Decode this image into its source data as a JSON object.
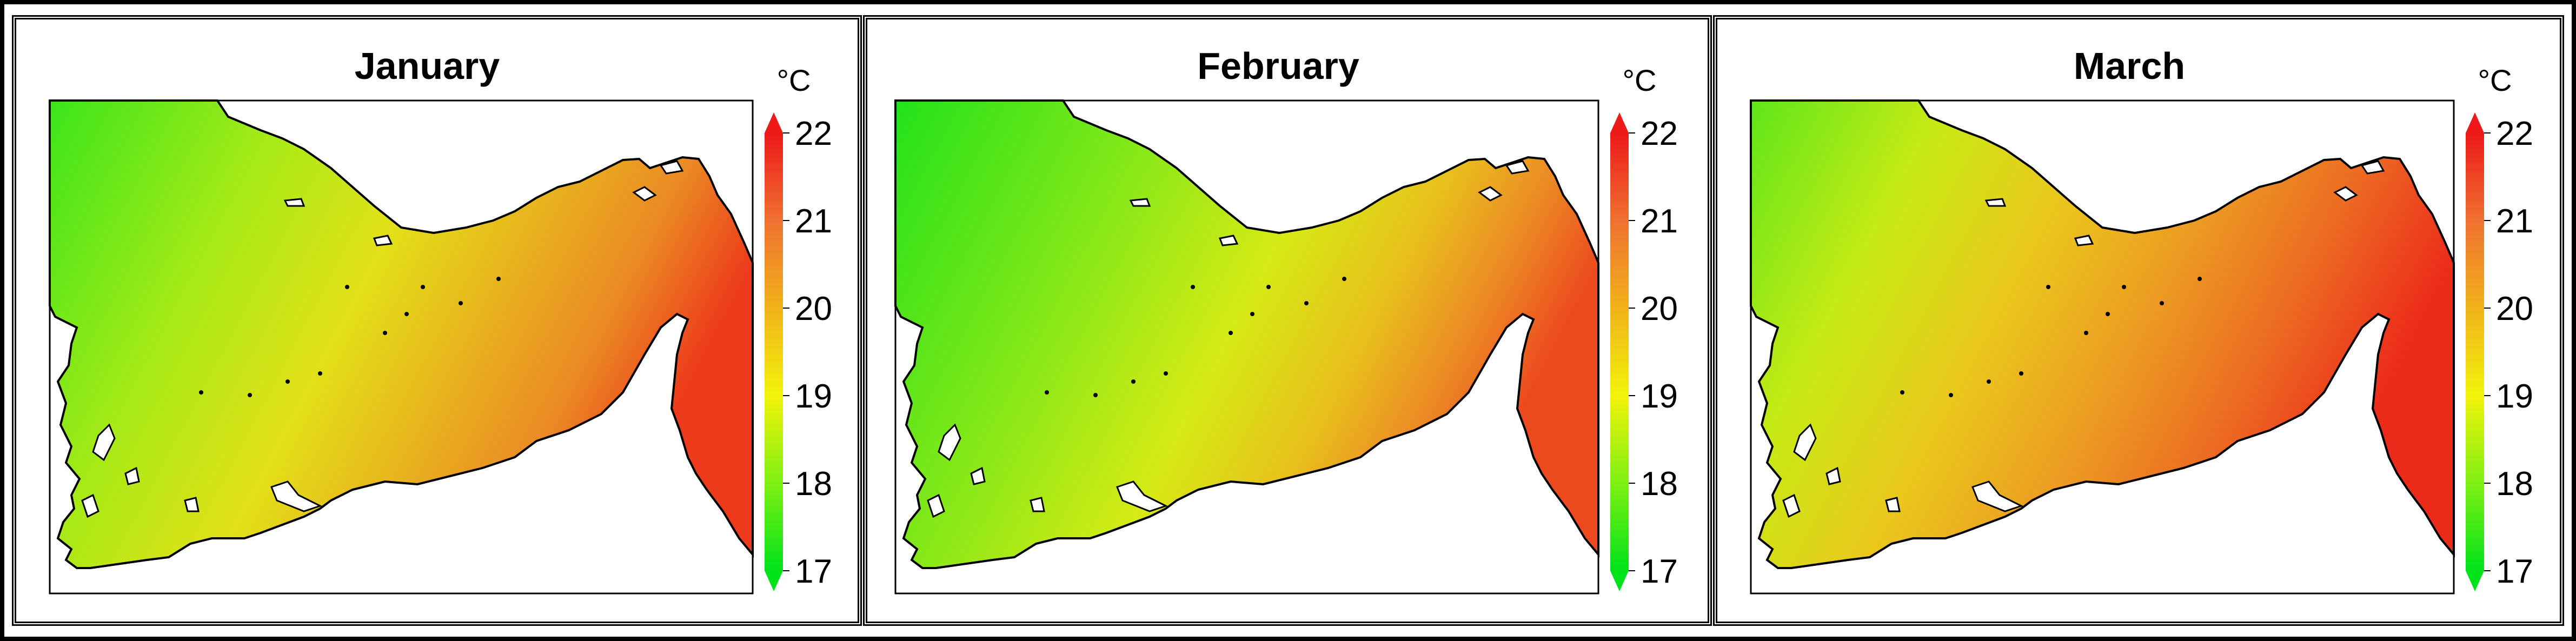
{
  "figure": {
    "unit_label": "°C",
    "scale_min": 17,
    "scale_max": 22,
    "colorbar_ticks": [
      "22",
      "21",
      "20",
      "19",
      "18",
      "17"
    ],
    "color_scale": [
      "#00e21a",
      "#7ef012",
      "#f2f20a",
      "#f0b21a",
      "#ef7030",
      "#ee1a1a"
    ]
  },
  "panels": [
    {
      "title": "January",
      "gradient": [
        {
          "offset": "0%",
          "color": "#3be51c"
        },
        {
          "offset": "30%",
          "color": "#a6ea16"
        },
        {
          "offset": "52%",
          "color": "#e3e018"
        },
        {
          "offset": "70%",
          "color": "#e8b11e"
        },
        {
          "offset": "85%",
          "color": "#eb8a24"
        },
        {
          "offset": "100%",
          "color": "#ec3a1a"
        }
      ]
    },
    {
      "title": "February",
      "gradient": [
        {
          "offset": "0%",
          "color": "#22e21a"
        },
        {
          "offset": "35%",
          "color": "#8ae818"
        },
        {
          "offset": "58%",
          "color": "#d6ea14"
        },
        {
          "offset": "75%",
          "color": "#e8c01c"
        },
        {
          "offset": "88%",
          "color": "#ec8a24"
        },
        {
          "offset": "100%",
          "color": "#ec4a1e"
        }
      ]
    },
    {
      "title": "March",
      "gradient": [
        {
          "offset": "0%",
          "color": "#5fe61a"
        },
        {
          "offset": "25%",
          "color": "#c8ea14"
        },
        {
          "offset": "45%",
          "color": "#eac81c"
        },
        {
          "offset": "65%",
          "color": "#ec9a22"
        },
        {
          "offset": "82%",
          "color": "#ec6a22"
        },
        {
          "offset": "100%",
          "color": "#ec2a1a"
        }
      ]
    }
  ]
}
